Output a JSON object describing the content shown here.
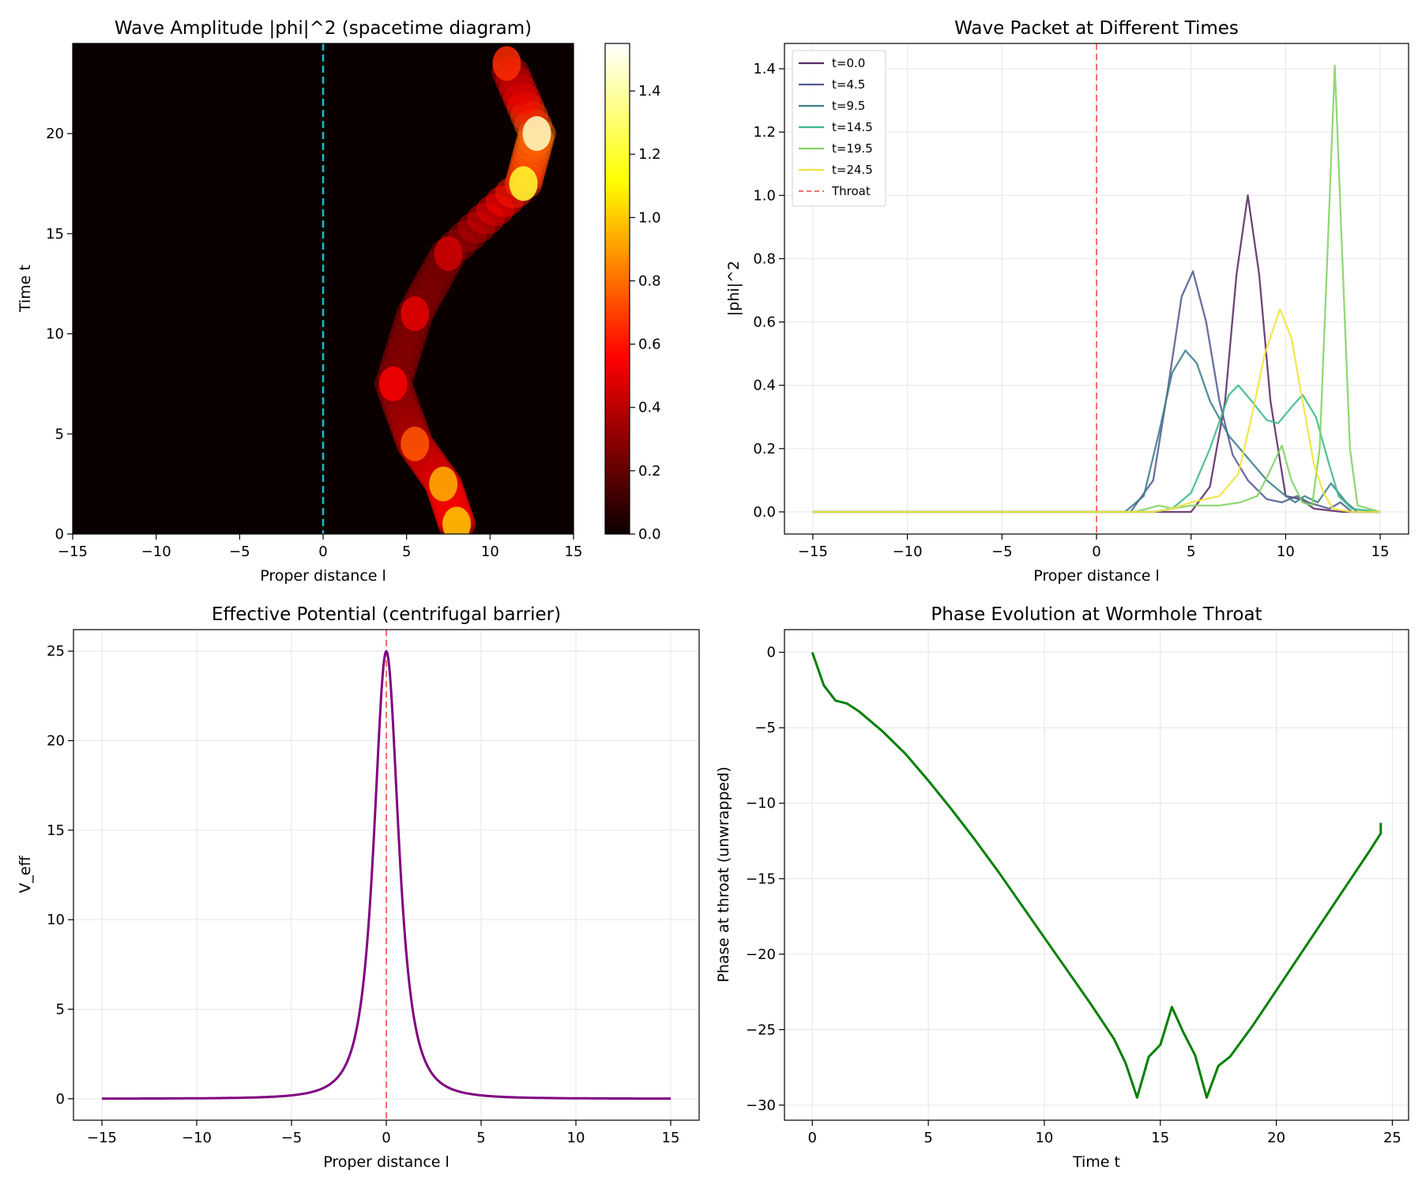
{
  "chart_data": [
    {
      "type": "heatmap",
      "title": "Wave Amplitude |phi|^2 (spacetime diagram)",
      "xlabel": "Proper distance l",
      "ylabel": "Time t",
      "xlim": [
        -15,
        15
      ],
      "ylim": [
        0,
        24.5
      ],
      "xticks": [
        "−15",
        "−10",
        "−5",
        "0",
        "5",
        "10",
        "15"
      ],
      "xtick_values": [
        -15,
        -10,
        -5,
        0,
        5,
        10,
        15
      ],
      "yticks": [
        "0",
        "5",
        "10",
        "15",
        "20"
      ],
      "ytick_values": [
        0,
        5,
        10,
        15,
        20
      ],
      "colormap": "hot",
      "colorbar": {
        "range": [
          0,
          1.55
        ],
        "ticks": [
          "0.0",
          "0.2",
          "0.4",
          "0.6",
          "0.8",
          "1.0",
          "1.2",
          "1.4"
        ],
        "tick_values": [
          0,
          0.2,
          0.4,
          0.6,
          0.8,
          1.0,
          1.2,
          1.4
        ]
      },
      "throat_line": {
        "x": 0,
        "color": "#17becf",
        "style": "dashed"
      },
      "intensity_ridge": [
        {
          "t": 0.5,
          "l": 8.0,
          "value": 1.0
        },
        {
          "t": 2.5,
          "l": 7.2,
          "value": 0.95
        },
        {
          "t": 4.5,
          "l": 5.5,
          "value": 0.75
        },
        {
          "t": 7.5,
          "l": 4.2,
          "value": 0.55
        },
        {
          "t": 11.0,
          "l": 5.5,
          "value": 0.5
        },
        {
          "t": 14.0,
          "l": 7.5,
          "value": 0.45
        },
        {
          "t": 17.5,
          "l": 12.0,
          "value": 1.2
        },
        {
          "t": 20.0,
          "l": 12.8,
          "value": 1.45
        },
        {
          "t": 23.5,
          "l": 11.0,
          "value": 0.65
        }
      ]
    },
    {
      "type": "line",
      "title": "Wave Packet at Different Times",
      "xlabel": "Proper distance l",
      "ylabel": "|phi|^2",
      "xlim": [
        -16.5,
        16.5
      ],
      "ylim": [
        -0.07,
        1.48
      ],
      "grid": true,
      "legend": "top-left",
      "xticks": [
        "−15",
        "−10",
        "−5",
        "0",
        "5",
        "10",
        "15"
      ],
      "xtick_values": [
        -15,
        -10,
        -5,
        0,
        5,
        10,
        15
      ],
      "yticks": [
        "0.0",
        "0.2",
        "0.4",
        "0.6",
        "0.8",
        "1.0",
        "1.2",
        "1.4"
      ],
      "ytick_values": [
        0,
        0.2,
        0.4,
        0.6,
        0.8,
        1.0,
        1.2,
        1.4
      ],
      "x_range": [
        -15,
        15
      ],
      "series": [
        {
          "name": "t=0.0",
          "color": "#5b2a67",
          "points": [
            [
              -15,
              0
            ],
            [
              5,
              0
            ],
            [
              6,
              0.08
            ],
            [
              6.8,
              0.35
            ],
            [
              7.4,
              0.75
            ],
            [
              8,
              1.0
            ],
            [
              8.6,
              0.75
            ],
            [
              9.2,
              0.35
            ],
            [
              10,
              0.05
            ],
            [
              10.8,
              0.04
            ],
            [
              11.5,
              0.01
            ],
            [
              13,
              0
            ],
            [
              15,
              0
            ]
          ]
        },
        {
          "name": "t=4.5",
          "color": "#535c92",
          "points": [
            [
              -15,
              0
            ],
            [
              1.8,
              0
            ],
            [
              3,
              0.1
            ],
            [
              3.8,
              0.4
            ],
            [
              4.5,
              0.68
            ],
            [
              5.1,
              0.76
            ],
            [
              5.8,
              0.6
            ],
            [
              6.5,
              0.35
            ],
            [
              7.2,
              0.18
            ],
            [
              8,
              0.1
            ],
            [
              9,
              0.04
            ],
            [
              9.8,
              0.03
            ],
            [
              10.6,
              0.05
            ],
            [
              11.2,
              0.03
            ],
            [
              12.3,
              0.01
            ],
            [
              12.9,
              0.03
            ],
            [
              13.5,
              0
            ],
            [
              15,
              0
            ]
          ]
        },
        {
          "name": "t=9.5",
          "color": "#3b7f8a",
          "points": [
            [
              -15,
              0
            ],
            [
              1.5,
              0
            ],
            [
              2.5,
              0.05
            ],
            [
              3.3,
              0.25
            ],
            [
              4,
              0.44
            ],
            [
              4.7,
              0.51
            ],
            [
              5.3,
              0.47
            ],
            [
              6,
              0.35
            ],
            [
              7,
              0.24
            ],
            [
              8,
              0.17
            ],
            [
              9,
              0.1
            ],
            [
              9.8,
              0.06
            ],
            [
              10.5,
              0.03
            ],
            [
              11,
              0.05
            ],
            [
              11.7,
              0.03
            ],
            [
              12.4,
              0.09
            ],
            [
              13.2,
              0.03
            ],
            [
              13.8,
              0
            ],
            [
              15,
              0
            ]
          ]
        },
        {
          "name": "t=14.5",
          "color": "#3cb98a",
          "points": [
            [
              -15,
              0
            ],
            [
              3,
              0
            ],
            [
              4,
              0.01
            ],
            [
              5,
              0.06
            ],
            [
              6,
              0.2
            ],
            [
              7,
              0.37
            ],
            [
              7.5,
              0.4
            ],
            [
              8.2,
              0.35
            ],
            [
              9,
              0.29
            ],
            [
              9.6,
              0.28
            ],
            [
              10.3,
              0.33
            ],
            [
              10.9,
              0.37
            ],
            [
              11.6,
              0.3
            ],
            [
              12.3,
              0.15
            ],
            [
              12.8,
              0.05
            ],
            [
              13.5,
              0.01
            ],
            [
              15,
              0
            ]
          ]
        },
        {
          "name": "t=19.5",
          "color": "#82d364",
          "points": [
            [
              -15,
              0
            ],
            [
              2,
              0
            ],
            [
              2.7,
              0.01
            ],
            [
              3.3,
              0.02
            ],
            [
              4,
              0.01
            ],
            [
              5,
              0.02
            ],
            [
              6.5,
              0.02
            ],
            [
              7.6,
              0.03
            ],
            [
              8.5,
              0.05
            ],
            [
              9.1,
              0.12
            ],
            [
              9.8,
              0.21
            ],
            [
              10.3,
              0.1
            ],
            [
              10.9,
              0.03
            ],
            [
              11.4,
              0.02
            ],
            [
              11.8,
              0.2
            ],
            [
              12.2,
              0.8
            ],
            [
              12.6,
              1.41
            ],
            [
              13,
              0.8
            ],
            [
              13.4,
              0.2
            ],
            [
              13.8,
              0.02
            ],
            [
              15,
              0
            ]
          ]
        },
        {
          "name": "t=24.5",
          "color": "#f4e23b",
          "points": [
            [
              -15,
              0
            ],
            [
              3,
              0
            ],
            [
              4,
              0.01
            ],
            [
              5,
              0.03
            ],
            [
              6.5,
              0.05
            ],
            [
              7.5,
              0.12
            ],
            [
              8.2,
              0.3
            ],
            [
              8.9,
              0.5
            ],
            [
              9.7,
              0.64
            ],
            [
              10.3,
              0.55
            ],
            [
              10.9,
              0.35
            ],
            [
              11.5,
              0.15
            ],
            [
              12,
              0.06
            ],
            [
              12.5,
              0.01
            ],
            [
              13.5,
              0
            ],
            [
              15,
              0
            ]
          ]
        }
      ],
      "reference_line": {
        "name": "Throat",
        "x": 0,
        "color": "#f07070",
        "style": "dashed"
      }
    },
    {
      "type": "line",
      "title": "Effective Potential (centrifugal barrier)",
      "xlabel": "Proper distance l",
      "ylabel": "V_eff",
      "xlim": [
        -16.5,
        16.5
      ],
      "ylim": [
        -1.2,
        26.2
      ],
      "grid": true,
      "xticks": [
        "−15",
        "−10",
        "−5",
        "0",
        "5",
        "10",
        "15"
      ],
      "xtick_values": [
        -15,
        -10,
        -5,
        0,
        5,
        10,
        15
      ],
      "yticks": [
        "0",
        "5",
        "10",
        "15",
        "20",
        "25"
      ],
      "ytick_values": [
        0,
        5,
        10,
        15,
        20,
        25
      ],
      "series": [
        {
          "name": "V_eff",
          "color": "#800080",
          "formula": "25/(1+l^2)^1.5",
          "domain": [
            -15,
            15
          ]
        }
      ],
      "reference_line": {
        "x": 0,
        "color": "#f07070",
        "style": "dashed"
      }
    },
    {
      "type": "line",
      "title": "Phase Evolution at Wormhole Throat",
      "xlabel": "Time t",
      "ylabel": "Phase at throat (unwrapped)",
      "xlim": [
        -1.2,
        25.7
      ],
      "ylim": [
        -31.0,
        1.5
      ],
      "grid": true,
      "xticks": [
        "0",
        "5",
        "10",
        "15",
        "20",
        "25"
      ],
      "xtick_values": [
        0,
        5,
        10,
        15,
        20,
        25
      ],
      "yticks": [
        "0",
        "−5",
        "−10",
        "−15",
        "−20",
        "−25",
        "−30"
      ],
      "ytick_values": [
        0,
        -5,
        -10,
        -15,
        -20,
        -25,
        -30
      ],
      "series": [
        {
          "name": "phase",
          "color": "#008000",
          "points": [
            [
              0,
              0
            ],
            [
              0.5,
              -2.2
            ],
            [
              1,
              -3.2
            ],
            [
              1.5,
              -3.4
            ],
            [
              2,
              -3.9
            ],
            [
              3,
              -5.2
            ],
            [
              4,
              -6.7
            ],
            [
              5,
              -8.5
            ],
            [
              6,
              -10.4
            ],
            [
              7,
              -12.4
            ],
            [
              8,
              -14.5
            ],
            [
              9,
              -16.7
            ],
            [
              10,
              -18.9
            ],
            [
              11,
              -21.1
            ],
            [
              12,
              -23.3
            ],
            [
              13,
              -25.6
            ],
            [
              13.5,
              -27.2
            ],
            [
              14,
              -29.5
            ],
            [
              14.5,
              -26.8
            ],
            [
              15,
              -26.0
            ],
            [
              15.5,
              -23.5
            ],
            [
              16,
              -25.2
            ],
            [
              16.5,
              -26.7
            ],
            [
              17,
              -29.5
            ],
            [
              17.5,
              -27.4
            ],
            [
              18,
              -26.8
            ],
            [
              19,
              -24.7
            ],
            [
              20,
              -22.4
            ],
            [
              21,
              -20.1
            ],
            [
              22,
              -17.8
            ],
            [
              23,
              -15.5
            ],
            [
              24,
              -13.2
            ],
            [
              24.5,
              -12.0
            ],
            [
              24.5,
              -11.3
            ]
          ]
        }
      ]
    }
  ]
}
